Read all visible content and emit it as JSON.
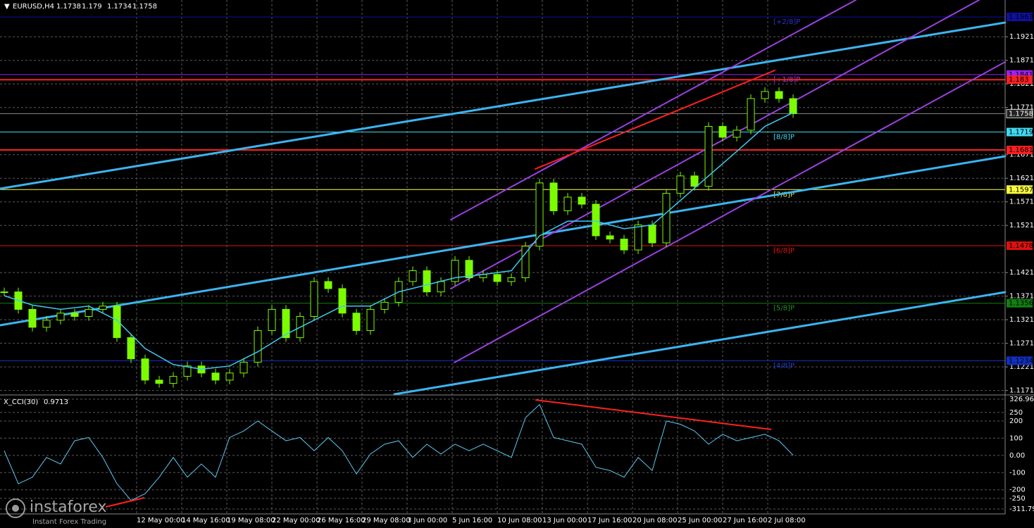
{
  "chart_data": {
    "type": "candlestick",
    "title": "EURUSD,H4",
    "last_bar": {
      "open": 1.1738,
      "high": 1.179,
      "low": 1.1734
    },
    "closes": [
      1.138,
      1.1343,
      1.1305,
      1.132,
      1.1335,
      1.1328,
      1.1343,
      1.135,
      1.1283,
      1.1238,
      1.1193,
      1.1186,
      1.1201,
      1.1223,
      1.1208,
      1.1193,
      1.1208,
      1.1231,
      1.1298,
      1.1343,
      1.1283,
      1.1328,
      1.1402,
      1.1387,
      1.1335,
      1.1298,
      1.1343,
      1.1358,
      1.1402,
      1.1425,
      1.138,
      1.1402,
      1.1447,
      1.141,
      1.1417,
      1.1402,
      1.141,
      1.1477,
      1.1611,
      1.1552,
      1.1581,
      1.1566,
      1.1499,
      1.1492,
      1.1469,
      1.1522,
      1.1484,
      1.1589,
      1.1626,
      1.1604,
      1.1731,
      1.1708,
      1.1723,
      1.179,
      1.1805,
      1.179,
      1.1758
    ],
    "candle_color": "#7cfc00",
    "ma": [
      1.1372,
      1.1352,
      1.1343,
      1.135,
      1.132,
      1.126,
      1.1226,
      1.1216,
      1.1223,
      1.1253,
      1.129,
      1.132,
      1.135,
      1.135,
      1.138,
      1.1395,
      1.141,
      1.1417,
      1.1425,
      1.1499,
      1.153,
      1.153,
      1.1514,
      1.1522,
      1.1574,
      1.1626,
      1.1678,
      1.1731,
      1.176
    ],
    "ma_color": "#40c8f0",
    "ylim": [
      1.1163,
      1.1999
    ],
    "yticks": [
      1.1171,
      1.1221,
      1.1271,
      1.1321,
      1.1371,
      1.1421,
      1.1521,
      1.1571,
      1.1621,
      1.1671,
      1.1771,
      1.1821,
      1.1871,
      1.1921
    ],
    "grid": true,
    "levels": [
      {
        "value": 1.1963,
        "color": "#1010a0",
        "murray": "[+2/8]P",
        "text_color": "#3030d0"
      },
      {
        "value": 1.1841,
        "color": "#a020f0",
        "murray": "[+1/8]P",
        "text_color": "#a040f0"
      },
      {
        "value": 1.183,
        "color": "#ff2020"
      },
      {
        "value": 1.1719,
        "color": "#40d8f0",
        "murray": "[8/8]P",
        "text_color": "#40d8f0"
      },
      {
        "value": 1.1681,
        "color": "#ff2020"
      },
      {
        "value": 1.1597,
        "color": "#ffff40",
        "murray": "[7/8]P",
        "text_color": "#e0e040"
      },
      {
        "value": 1.1478,
        "color": "#e01010",
        "murray": "[6/8]P",
        "text_color": "#e01010"
      },
      {
        "value": 1.1356,
        "color": "#108010",
        "murray": "[5/8]P",
        "text_color": "#209020"
      },
      {
        "value": 1.1234,
        "color": "#1030c0",
        "murray": "[4/8]P",
        "text_color": "#2040d0"
      }
    ],
    "time_labels": [
      "12 May 00:00",
      "14 May 16:00",
      "19 May 08:00",
      "22 May 00:00",
      "26 May 16:00",
      "29 May 08:00",
      "3 Jun 00:00",
      "5 Jun 16:00",
      "10 Jun 08:00",
      "13 Jun 00:00",
      "17 Jun 16:00",
      "20 Jun 08:00",
      "25 Jun 00:00",
      "27 Jun 16:00",
      "2 Jul 08:00"
    ],
    "indicator": {
      "title": "X_CCI(30)",
      "color": "#5bc8f0",
      "values": [
        27,
        -165,
        -127,
        -12,
        -50,
        85,
        104,
        -12,
        -165,
        -262,
        -223,
        -127,
        -12,
        -127,
        -50,
        -127,
        104,
        142,
        200,
        142,
        85,
        104,
        27,
        104,
        27,
        -108,
        8,
        65,
        85,
        -12,
        65,
        8,
        65,
        27,
        65,
        27,
        -12,
        219,
        296,
        104,
        85,
        65,
        -69,
        -88,
        -127,
        -12,
        -88,
        200,
        181,
        142,
        65,
        123,
        85,
        104,
        123,
        85,
        0.9713
      ],
      "ylim": [
        -311.798,
        326.9647
      ],
      "yticks": [
        326.9647,
        250,
        200,
        100,
        {
          "value": 0,
          "label": "0.00"
        },
        -100,
        -200,
        -250,
        -311.798
      ]
    },
    "watermark": {
      "brand": "instaforex",
      "tagline": "Instant Forex Trading"
    }
  }
}
